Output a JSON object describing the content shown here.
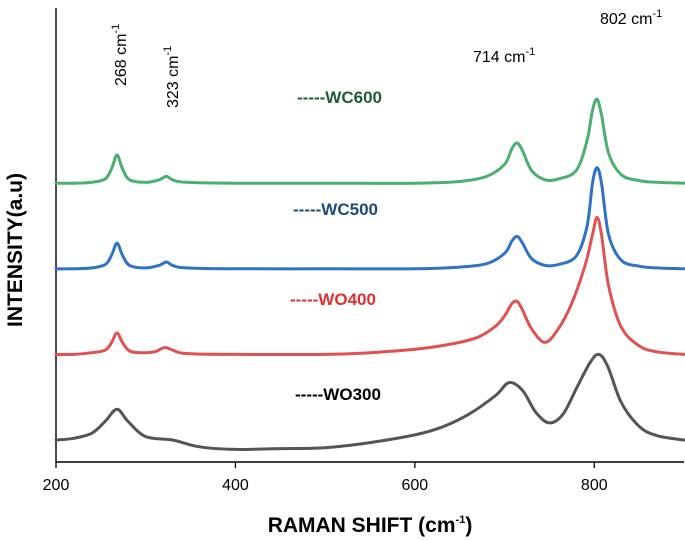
{
  "chart_data": {
    "type": "line",
    "title": "",
    "xlabel": "RAMAN SHIFT (cm",
    "xlabel_sup": "-1",
    "xlabel_end": ")",
    "ylabel": "INTENSITY(a.u)",
    "xlim": [
      200,
      900
    ],
    "ylim": [
      0,
      5
    ],
    "xticks": [
      200,
      400,
      600,
      800
    ],
    "grid": false,
    "series": [
      {
        "name": "WO300",
        "legend": "-----WO300",
        "color": "#555555",
        "legend_color": "#000000",
        "x": [
          200,
          220,
          240,
          255,
          268,
          280,
          300,
          330,
          360,
          400,
          450,
          500,
          550,
          600,
          630,
          660,
          690,
          705,
          720,
          735,
          750,
          765,
          780,
          795,
          805,
          815,
          830,
          850,
          870,
          900
        ],
        "y": [
          0.0,
          0.02,
          0.08,
          0.22,
          0.36,
          0.22,
          0.04,
          0.0,
          -0.08,
          -0.11,
          -0.1,
          -0.09,
          -0.03,
          0.06,
          0.15,
          0.3,
          0.52,
          0.67,
          0.58,
          0.32,
          0.2,
          0.3,
          0.6,
          0.9,
          1.0,
          0.86,
          0.44,
          0.16,
          0.05,
          0.0
        ]
      },
      {
        "name": "WO400",
        "legend": "-----WO400",
        "color": "#e05252",
        "legend_color": "#e03030",
        "x": [
          200,
          220,
          240,
          255,
          262,
          268,
          274,
          282,
          295,
          310,
          318,
          323,
          330,
          345,
          400,
          500,
          550,
          600,
          640,
          670,
          690,
          700,
          708,
          714,
          720,
          730,
          745,
          760,
          775,
          790,
          798,
          803,
          808,
          816,
          830,
          850,
          870,
          900
        ],
        "y": [
          1.0,
          1.0,
          1.02,
          1.05,
          1.14,
          1.25,
          1.14,
          1.04,
          1.02,
          1.03,
          1.07,
          1.08,
          1.05,
          1.01,
          1.0,
          1.0,
          1.02,
          1.06,
          1.12,
          1.2,
          1.33,
          1.45,
          1.59,
          1.62,
          1.52,
          1.3,
          1.14,
          1.3,
          1.6,
          2.05,
          2.4,
          2.6,
          2.4,
          1.8,
          1.32,
          1.1,
          1.03,
          1.0
        ]
      },
      {
        "name": "WC500",
        "legend": "-----WC500",
        "color": "#2f72c8",
        "legend_color": "#1d4a78",
        "x": [
          200,
          220,
          240,
          255,
          262,
          268,
          274,
          282,
          300,
          315,
          323,
          330,
          345,
          400,
          500,
          600,
          650,
          680,
          700,
          708,
          714,
          720,
          730,
          745,
          760,
          780,
          792,
          798,
          803,
          808,
          816,
          830,
          850,
          870,
          900
        ],
        "y": [
          2.0,
          2.0,
          2.01,
          2.05,
          2.16,
          2.3,
          2.16,
          2.04,
          2.01,
          2.04,
          2.08,
          2.04,
          2.01,
          2.0,
          2.0,
          2.0,
          2.02,
          2.06,
          2.18,
          2.32,
          2.38,
          2.3,
          2.12,
          2.04,
          2.05,
          2.15,
          2.5,
          3.0,
          3.18,
          3.0,
          2.4,
          2.1,
          2.03,
          2.01,
          2.0
        ]
      },
      {
        "name": "WC600",
        "legend": "-----WC600",
        "color": "#4caf72",
        "legend_color": "#1d5c36",
        "x": [
          200,
          220,
          240,
          255,
          262,
          268,
          274,
          282,
          300,
          315,
          323,
          330,
          345,
          400,
          500,
          600,
          650,
          680,
          700,
          708,
          714,
          720,
          730,
          745,
          760,
          780,
          792,
          798,
          803,
          808,
          816,
          830,
          850,
          870,
          900
        ],
        "y": [
          3.0,
          3.0,
          3.01,
          3.05,
          3.17,
          3.33,
          3.17,
          3.04,
          3.01,
          3.04,
          3.08,
          3.04,
          3.01,
          3.0,
          3.0,
          3.0,
          3.02,
          3.08,
          3.22,
          3.4,
          3.47,
          3.38,
          3.15,
          3.04,
          3.05,
          3.15,
          3.5,
          3.85,
          3.98,
          3.8,
          3.35,
          3.1,
          3.03,
          3.01,
          3.0
        ]
      }
    ],
    "annotations": [
      {
        "text": "268 cm",
        "sup": "-1",
        "x": 268,
        "rotate": true
      },
      {
        "text": "323 cm",
        "sup": "-1",
        "x": 323,
        "rotate": true
      },
      {
        "text": "714 cm",
        "sup": "-1",
        "x": 714,
        "rotate": false
      },
      {
        "text": "802 cm",
        "sup": "-1",
        "x": 802,
        "rotate": false
      }
    ]
  }
}
